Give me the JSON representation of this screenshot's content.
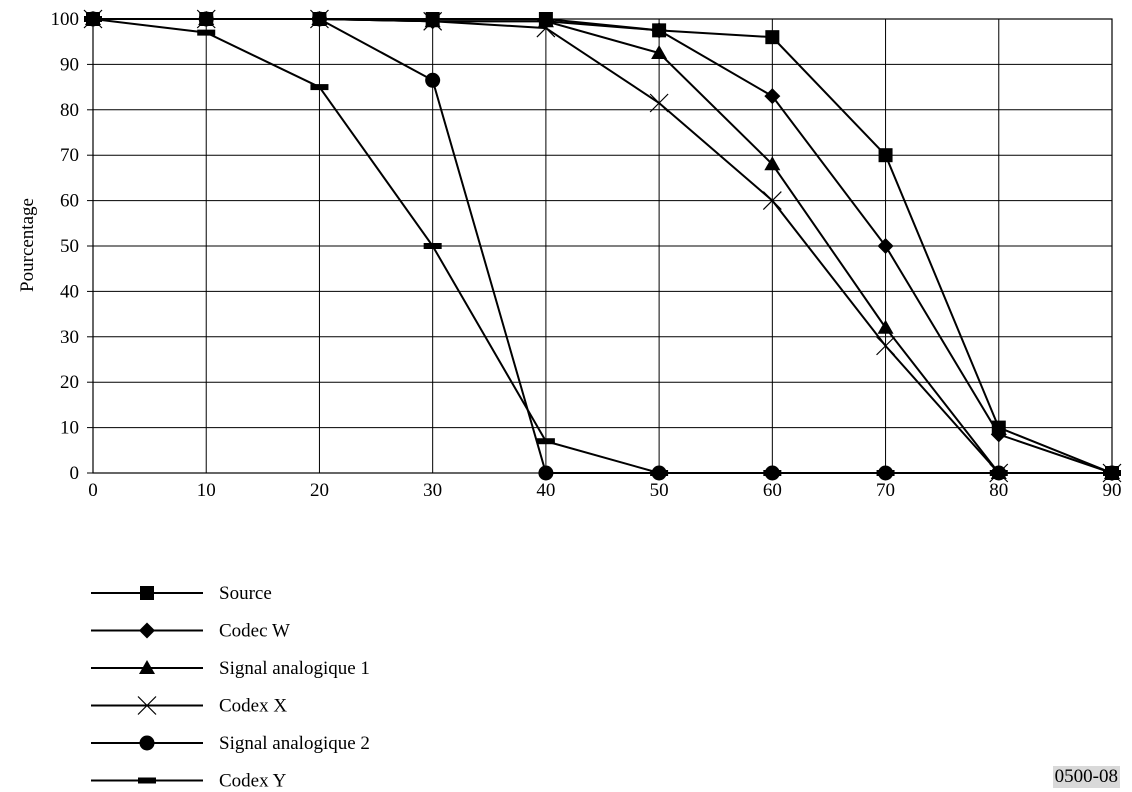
{
  "chart_data": {
    "type": "line",
    "title": "",
    "xlabel": "",
    "ylabel": "Pourcentage",
    "xlim": [
      0,
      90
    ],
    "ylim": [
      0,
      100
    ],
    "x_ticks": [
      0,
      10,
      20,
      30,
      40,
      50,
      60,
      70,
      80,
      90
    ],
    "y_ticks": [
      0,
      10,
      20,
      30,
      40,
      50,
      60,
      70,
      80,
      90,
      100
    ],
    "grid": true,
    "legend_position": "bottom-left",
    "x": [
      0,
      10,
      20,
      30,
      40,
      50,
      60,
      70,
      80,
      90
    ],
    "series": [
      {
        "name": "Source",
        "marker": "square",
        "values": [
          100,
          100,
          100,
          100,
          100,
          97.5,
          96,
          70,
          10,
          0
        ]
      },
      {
        "name": "Codec W",
        "marker": "diamond",
        "values": [
          100,
          100,
          100,
          99.5,
          99.5,
          97.5,
          83,
          50,
          8.5,
          0
        ]
      },
      {
        "name": "Signal analogique 1",
        "marker": "triangle",
        "values": [
          100,
          100,
          100,
          99.5,
          99.5,
          92.5,
          68,
          32,
          0,
          0
        ]
      },
      {
        "name": "Codex X",
        "marker": "cross",
        "values": [
          100,
          100,
          100,
          99.5,
          98,
          81.5,
          60,
          28,
          0,
          0
        ]
      },
      {
        "name": "Signal analogique 2",
        "marker": "circle",
        "values": [
          100,
          100,
          100,
          86.5,
          0,
          0,
          0,
          0,
          0,
          0
        ]
      },
      {
        "name": "Codex Y",
        "marker": "dash",
        "values": [
          100,
          97,
          85,
          50,
          7,
          0,
          0,
          0,
          0,
          0
        ]
      }
    ]
  },
  "figure_id": "0500-08"
}
